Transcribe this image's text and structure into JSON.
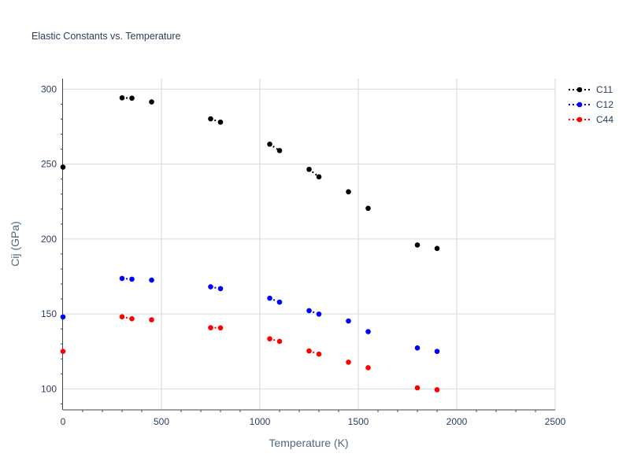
{
  "chart_data": {
    "type": "scatter",
    "title": "Elastic Constants vs. Temperature",
    "xlabel": "Temperature (K)",
    "ylabel": "Cij (GPa)",
    "xlim": [
      0,
      2500
    ],
    "ylim": [
      86,
      307
    ],
    "x_ticks": [
      0,
      500,
      1000,
      1500,
      2000,
      2500
    ],
    "y_ticks": [
      100,
      150,
      200,
      250,
      300
    ],
    "grid": true,
    "legend_position": "top-right",
    "series": [
      {
        "name": "C11",
        "color": "#000000",
        "line_style": "dotted",
        "segments": [
          [
            [
              0,
              248
            ]
          ],
          [
            [
              300,
              294.2
            ],
            [
              350,
              294
            ]
          ],
          [
            [
              450,
              291.5
            ]
          ],
          [
            [
              750,
              280.2
            ],
            [
              800,
              278
            ]
          ],
          [
            [
              1050,
              263.3
            ],
            [
              1100,
              259
            ]
          ],
          [
            [
              1250,
              246.5
            ],
            [
              1300,
              241.5
            ]
          ],
          [
            [
              1450,
              231.5
            ]
          ],
          [
            [
              1550,
              220.5
            ]
          ],
          [
            [
              1800,
              196
            ]
          ],
          [
            [
              1900,
              193.7
            ]
          ]
        ]
      },
      {
        "name": "C12",
        "color": "#0000ff",
        "line_style": "dotted",
        "segments": [
          [
            [
              0,
              148
            ]
          ],
          [
            [
              300,
              173.7
            ],
            [
              350,
              173.2
            ]
          ],
          [
            [
              450,
              172.6
            ]
          ],
          [
            [
              750,
              168.1
            ],
            [
              800,
              166.9
            ]
          ],
          [
            [
              1050,
              160.5
            ],
            [
              1100,
              157.9
            ]
          ],
          [
            [
              1250,
              152.2
            ],
            [
              1300,
              149.9
            ]
          ],
          [
            [
              1450,
              145.3
            ]
          ],
          [
            [
              1550,
              138.2
            ]
          ],
          [
            [
              1800,
              127.3
            ]
          ],
          [
            [
              1900,
              125
            ]
          ]
        ]
      },
      {
        "name": "C44",
        "color": "#ff0000",
        "line_style": "dotted",
        "segments": [
          [
            [
              0,
              125
            ]
          ],
          [
            [
              300,
              148.1
            ],
            [
              350,
              146.8
            ]
          ],
          [
            [
              450,
              146.1
            ]
          ],
          [
            [
              750,
              140.8
            ],
            [
              800,
              140.7
            ]
          ],
          [
            [
              1050,
              133.4
            ],
            [
              1100,
              131.7
            ]
          ],
          [
            [
              1250,
              125.3
            ],
            [
              1300,
              123.2
            ]
          ],
          [
            [
              1450,
              117.8
            ]
          ],
          [
            [
              1550,
              114.1
            ]
          ],
          [
            [
              1800,
              100.7
            ]
          ],
          [
            [
              1900,
              99.4
            ]
          ]
        ]
      }
    ]
  }
}
